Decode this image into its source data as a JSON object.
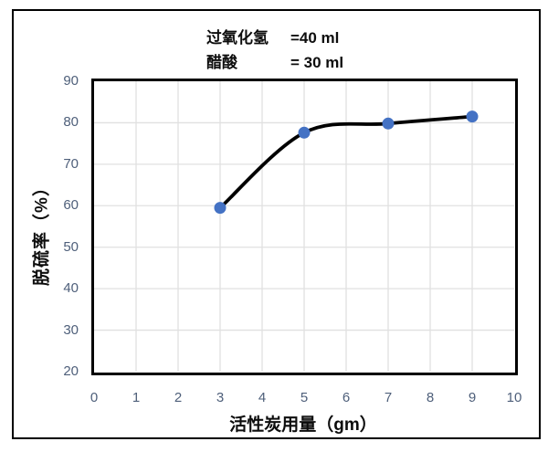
{
  "chart_data": {
    "type": "line",
    "title_lines": [
      {
        "label": "过氧化氢",
        "value": "=40 ml"
      },
      {
        "label": "醋酸",
        "value": "= 30 ml"
      }
    ],
    "xlabel": "活性炭用量（gm）",
    "ylabel": "脱硫率（%）",
    "x": [
      3,
      5,
      7,
      9
    ],
    "y": [
      59.5,
      77.6,
      79.8,
      81.5
    ],
    "xlim": [
      0,
      10
    ],
    "ylim": [
      20,
      90
    ],
    "x_ticks": [
      0,
      1,
      2,
      3,
      4,
      5,
      6,
      7,
      8,
      9,
      10
    ],
    "y_ticks": [
      20,
      30,
      40,
      50,
      60,
      70,
      80,
      90
    ],
    "grid": true,
    "legend": false,
    "smoothed": true,
    "marker": "circle",
    "colors": {
      "marker": "#4472C4",
      "line": "#000000",
      "grid": "#E0E0E0",
      "tick_label": "#4E5F7A",
      "plot_border": "#000000",
      "frame_border": "#000000",
      "background": "#FFFFFF"
    }
  }
}
